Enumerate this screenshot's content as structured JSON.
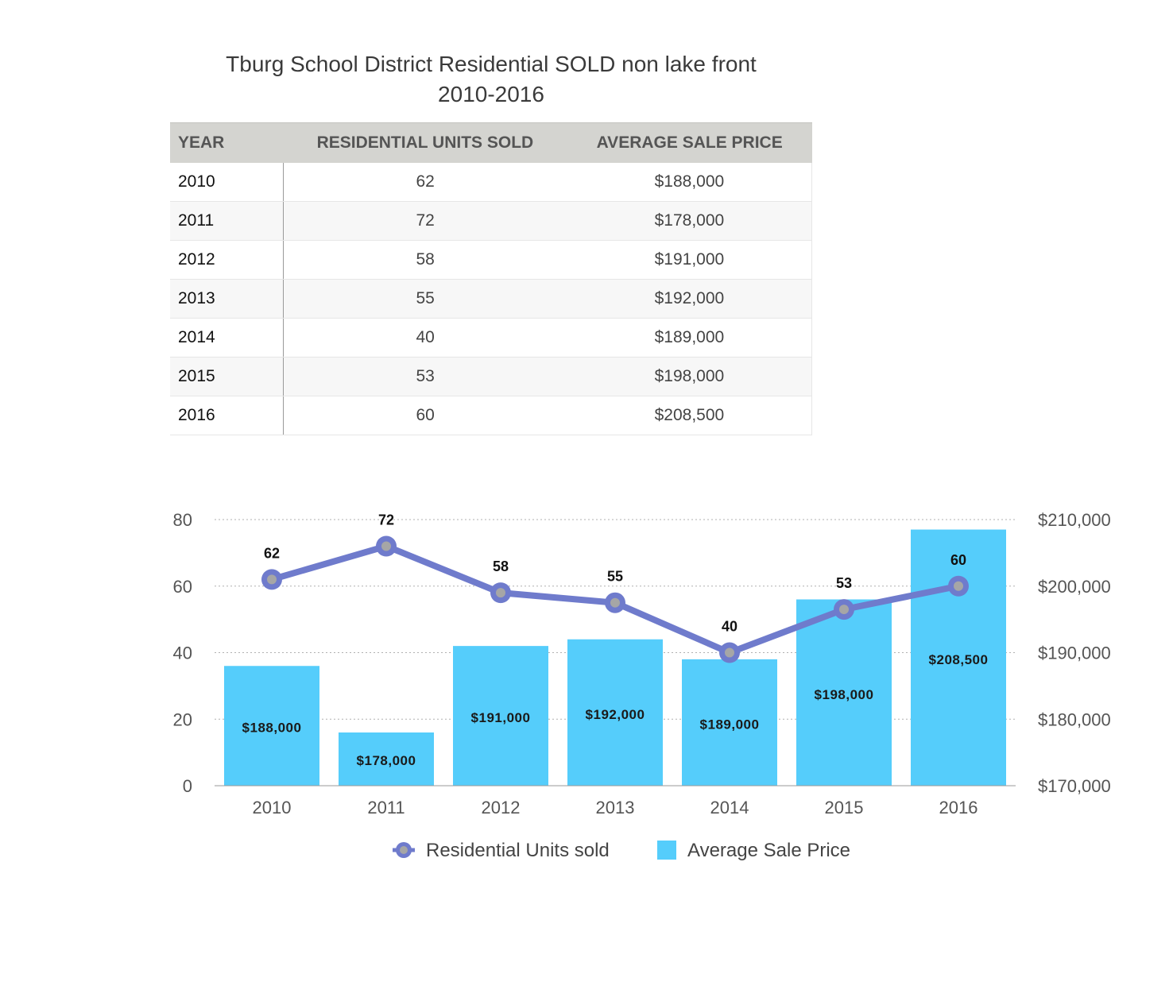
{
  "title_line1": "Tburg School District Residential SOLD non lake front",
  "title_line2": "2010-2016",
  "table": {
    "headers": [
      "YEAR",
      "RESIDENTIAL UNITS SOLD",
      "AVERAGE SALE PRICE"
    ],
    "rows": [
      [
        "2010",
        "62",
        "$188,000"
      ],
      [
        "2011",
        "72",
        "$178,000"
      ],
      [
        "2012",
        "58",
        "$191,000"
      ],
      [
        "2013",
        "55",
        "$192,000"
      ],
      [
        "2014",
        "40",
        "$189,000"
      ],
      [
        "2015",
        "53",
        "$198,000"
      ],
      [
        "2016",
        "60",
        "$208,500"
      ]
    ]
  },
  "chart_data": {
    "type": "bar",
    "categories": [
      "2010",
      "2011",
      "2012",
      "2013",
      "2014",
      "2015",
      "2016"
    ],
    "series": [
      {
        "name": "Residential Units sold",
        "type": "line",
        "axis": "left",
        "values": [
          62,
          72,
          58,
          55,
          40,
          53,
          60
        ],
        "labels": [
          "62",
          "72",
          "58",
          "55",
          "40",
          "53",
          "60"
        ],
        "color": "#6f7bcc"
      },
      {
        "name": "Average Sale Price",
        "type": "bar",
        "axis": "right",
        "values": [
          188000,
          178000,
          191000,
          192000,
          189000,
          198000,
          208500
        ],
        "labels": [
          "$188,000",
          "$178,000",
          "$191,000",
          "$192,000",
          "$189,000",
          "$198,000",
          "$208,500"
        ],
        "color": "#55cdfb"
      }
    ],
    "y_left": {
      "range": [
        0,
        80
      ],
      "ticks": [
        "0",
        "20",
        "40",
        "60",
        "80"
      ],
      "tick_values": [
        0,
        20,
        40,
        60,
        80
      ]
    },
    "y_right": {
      "range": [
        170000,
        210000
      ],
      "ticks": [
        "$170,000",
        "$180,000",
        "$190,000",
        "$200,000",
        "$210,000"
      ],
      "tick_values": [
        170000,
        180000,
        190000,
        200000,
        210000
      ]
    },
    "grid": true,
    "legend": "bottom",
    "xlabel": "",
    "ylabel": ""
  }
}
